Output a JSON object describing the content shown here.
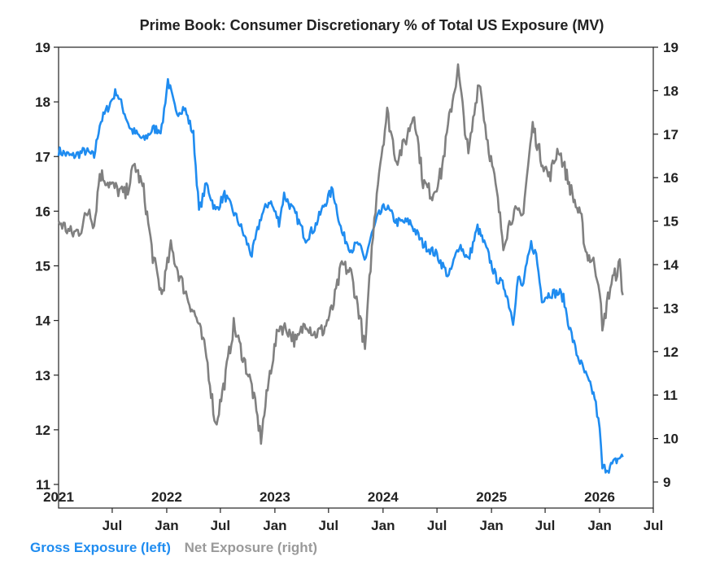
{
  "chart_data": {
    "type": "line",
    "title": "Prime Book: Consumer Discretionary % of Total US Exposure (MV)",
    "left_axis": {
      "ylim": [
        11,
        19
      ],
      "ticks": [
        "11",
        "12",
        "13",
        "14",
        "15",
        "16",
        "17",
        "18",
        "19"
      ]
    },
    "right_axis": {
      "ylim": [
        9,
        19
      ],
      "ticks": [
        "9",
        "10",
        "11",
        "12",
        "13",
        "14",
        "15",
        "16",
        "17",
        "18",
        "19"
      ]
    },
    "x_axis": {
      "range": [
        "2021-01-01",
        "2026-07-01"
      ],
      "month_ticks": [
        "Jul",
        "Jan",
        "Jul",
        "Jan",
        "Jul",
        "Jan",
        "Jul",
        "Jan",
        "Jul",
        "Jan",
        "Jul"
      ],
      "year_labels": [
        "2021",
        "2022",
        "2023",
        "2024",
        "2025",
        "2026"
      ]
    },
    "grid": false,
    "legend_placement": "bottom-left",
    "series": [
      {
        "name": "Gross Exposure (left)",
        "axis": "left",
        "color": "#1f8cf0",
        "points": [
          [
            "2021-01-01",
            17.1
          ],
          [
            "2021-02-15",
            17.0
          ],
          [
            "2021-04-01",
            17.1
          ],
          [
            "2021-05-01",
            17.0
          ],
          [
            "2021-05-20",
            17.6
          ],
          [
            "2021-07-15",
            18.2
          ],
          [
            "2021-09-01",
            17.5
          ],
          [
            "2021-10-15",
            17.3
          ],
          [
            "2021-11-15",
            17.5
          ],
          [
            "2021-12-15",
            17.5
          ],
          [
            "2022-01-05",
            18.4
          ],
          [
            "2022-02-01",
            17.8
          ],
          [
            "2022-03-01",
            17.9
          ],
          [
            "2022-04-01",
            17.4
          ],
          [
            "2022-04-20",
            16.0
          ],
          [
            "2022-05-15",
            16.5
          ],
          [
            "2022-06-15",
            16.0
          ],
          [
            "2022-07-15",
            16.3
          ],
          [
            "2022-09-01",
            15.8
          ],
          [
            "2022-10-15",
            15.2
          ],
          [
            "2022-11-15",
            15.9
          ],
          [
            "2022-12-15",
            16.2
          ],
          [
            "2023-01-15",
            15.8
          ],
          [
            "2023-02-01",
            16.3
          ],
          [
            "2023-03-15",
            15.9
          ],
          [
            "2023-04-15",
            15.5
          ],
          [
            "2023-05-15",
            15.7
          ],
          [
            "2023-06-15",
            16.1
          ],
          [
            "2023-07-15",
            16.4
          ],
          [
            "2023-08-15",
            15.6
          ],
          [
            "2023-09-15",
            15.3
          ],
          [
            "2023-10-10",
            15.4
          ],
          [
            "2023-10-31",
            15.1
          ],
          [
            "2023-11-20",
            15.5
          ],
          [
            "2023-12-15",
            15.9
          ],
          [
            "2024-01-10",
            16.1
          ],
          [
            "2024-02-15",
            15.8
          ],
          [
            "2024-04-01",
            15.8
          ],
          [
            "2024-05-15",
            15.4
          ],
          [
            "2024-07-01",
            15.2
          ],
          [
            "2024-08-10",
            14.8
          ],
          [
            "2024-09-15",
            15.4
          ],
          [
            "2024-10-15",
            15.1
          ],
          [
            "2024-11-15",
            15.7
          ],
          [
            "2024-12-15",
            15.3
          ],
          [
            "2025-01-15",
            14.8
          ],
          [
            "2025-02-15",
            14.6
          ],
          [
            "2025-03-01",
            14.3
          ],
          [
            "2025-03-15",
            14.0
          ],
          [
            "2025-04-01",
            14.8
          ],
          [
            "2025-04-15",
            14.6
          ],
          [
            "2025-05-15",
            15.4
          ],
          [
            "2025-06-01",
            15.2
          ],
          [
            "2025-06-20",
            14.4
          ],
          [
            "2025-07-20",
            14.5
          ],
          [
            "2025-08-20",
            14.5
          ],
          [
            "2025-09-01",
            14.4
          ],
          [
            "2025-09-20",
            13.9
          ],
          [
            "2025-10-15",
            13.4
          ],
          [
            "2025-11-15",
            13.0
          ],
          [
            "2025-12-15",
            12.6
          ],
          [
            "2026-01-01",
            12.0
          ],
          [
            "2026-01-10",
            11.3
          ],
          [
            "2026-02-01",
            11.3
          ],
          [
            "2026-02-20",
            11.4
          ],
          [
            "2026-03-10",
            11.5
          ],
          [
            "2026-03-20",
            11.5
          ]
        ]
      },
      {
        "name": "Net Exposure (right)",
        "axis": "right",
        "color": "#808080",
        "points": [
          [
            "2021-01-01",
            15.0
          ],
          [
            "2021-02-15",
            14.7
          ],
          [
            "2021-03-15",
            14.8
          ],
          [
            "2021-04-15",
            15.3
          ],
          [
            "2021-05-01",
            14.9
          ],
          [
            "2021-05-20",
            16.1
          ],
          [
            "2021-07-01",
            15.8
          ],
          [
            "2021-08-15",
            15.6
          ],
          [
            "2021-09-15",
            16.3
          ],
          [
            "2021-10-15",
            15.7
          ],
          [
            "2021-11-15",
            14.2
          ],
          [
            "2021-12-15",
            13.3
          ],
          [
            "2022-01-15",
            14.4
          ],
          [
            "2022-02-15",
            13.7
          ],
          [
            "2022-03-15",
            13.2
          ],
          [
            "2022-04-15",
            12.7
          ],
          [
            "2022-05-15",
            11.9
          ],
          [
            "2022-06-15",
            10.3
          ],
          [
            "2022-07-15",
            11.3
          ],
          [
            "2022-08-15",
            12.6
          ],
          [
            "2022-09-15",
            11.9
          ],
          [
            "2022-10-15",
            11.2
          ],
          [
            "2022-11-15",
            10.0
          ],
          [
            "2022-12-15",
            11.5
          ],
          [
            "2023-01-15",
            12.6
          ],
          [
            "2023-02-15",
            12.5
          ],
          [
            "2023-03-15",
            12.2
          ],
          [
            "2023-04-15",
            12.7
          ],
          [
            "2023-05-15",
            12.4
          ],
          [
            "2023-06-15",
            12.5
          ],
          [
            "2023-07-15",
            13.0
          ],
          [
            "2023-08-15",
            14.0
          ],
          [
            "2023-09-15",
            13.8
          ],
          [
            "2023-10-15",
            12.8
          ],
          [
            "2023-11-01",
            12.0
          ],
          [
            "2023-11-20",
            14.0
          ],
          [
            "2023-12-15",
            16.0
          ],
          [
            "2024-01-15",
            17.5
          ],
          [
            "2024-02-15",
            16.4
          ],
          [
            "2024-03-15",
            16.8
          ],
          [
            "2024-04-15",
            17.5
          ],
          [
            "2024-05-15",
            15.9
          ],
          [
            "2024-06-15",
            15.6
          ],
          [
            "2024-07-15",
            16.1
          ],
          [
            "2024-08-15",
            17.5
          ],
          [
            "2024-09-10",
            18.5
          ],
          [
            "2024-10-15",
            16.5
          ],
          [
            "2024-11-20",
            18.3
          ],
          [
            "2024-12-15",
            17.0
          ],
          [
            "2025-01-15",
            15.8
          ],
          [
            "2025-02-10",
            14.5
          ],
          [
            "2025-03-15",
            15.2
          ],
          [
            "2025-04-15",
            15.1
          ],
          [
            "2025-05-20",
            17.2
          ],
          [
            "2025-06-15",
            16.5
          ],
          [
            "2025-07-15",
            16.0
          ],
          [
            "2025-08-15",
            16.7
          ],
          [
            "2025-09-01",
            16.3
          ],
          [
            "2025-10-01",
            15.6
          ],
          [
            "2025-11-01",
            15.0
          ],
          [
            "2025-11-15",
            14.3
          ],
          [
            "2025-12-15",
            14.0
          ],
          [
            "2026-01-01",
            13.5
          ],
          [
            "2026-01-10",
            12.4
          ],
          [
            "2026-01-25",
            13.1
          ],
          [
            "2026-02-10",
            13.6
          ],
          [
            "2026-02-25",
            13.8
          ],
          [
            "2026-03-10",
            14.0
          ],
          [
            "2026-03-20",
            13.3
          ]
        ]
      }
    ]
  }
}
